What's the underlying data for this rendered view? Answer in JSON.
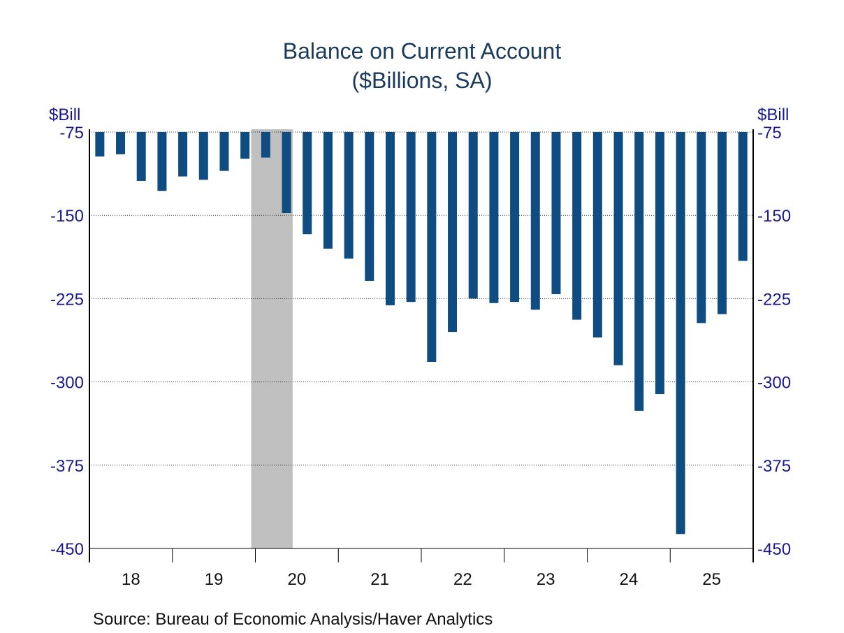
{
  "chart_data": {
    "type": "bar",
    "title": "Balance on Current Account",
    "subtitle": "($Billions, SA)",
    "ylabel_left": "$Bill",
    "ylabel_right": "$Bill",
    "ylim": [
      -450,
      -75
    ],
    "yticks": [
      -75,
      -150,
      -225,
      -300,
      -375,
      -450
    ],
    "ytick_labels": [
      "-75",
      "-150",
      "-225",
      "-300",
      "-375",
      "-450"
    ],
    "grid": true,
    "xtick_labels": [
      "18",
      "19",
      "20",
      "21",
      "22",
      "23",
      "24",
      "25"
    ],
    "categories": [
      "2018Q1",
      "2018Q2",
      "2018Q3",
      "2018Q4",
      "2019Q1",
      "2019Q2",
      "2019Q3",
      "2019Q4",
      "2020Q1",
      "2020Q2",
      "2020Q3",
      "2020Q4",
      "2021Q1",
      "2021Q2",
      "2021Q3",
      "2021Q4",
      "2022Q1",
      "2022Q2",
      "2022Q3",
      "2022Q4",
      "2023Q1",
      "2023Q2",
      "2023Q3",
      "2023Q4",
      "2024Q1",
      "2024Q2",
      "2024Q3",
      "2024Q4",
      "2025Q1",
      "2025Q2",
      "2025Q3",
      "2025Q4"
    ],
    "values": [
      -97,
      -95,
      -119,
      -128,
      -115,
      -118,
      -110,
      -99,
      -98,
      -148,
      -167,
      -180,
      -189,
      -209,
      -231,
      -228,
      -282,
      -255,
      -225,
      -229,
      -228,
      -235,
      -221,
      -244,
      -260,
      -285,
      -326,
      -311,
      -437,
      -247,
      -239,
      -191
    ],
    "recession_shading": {
      "start": "2020Q1",
      "end": "2020Q2"
    },
    "bar_color": "#0f4c81",
    "shade_color": "#c0c0c0",
    "source": "Source:  Bureau of Economic Analysis/Haver Analytics"
  }
}
